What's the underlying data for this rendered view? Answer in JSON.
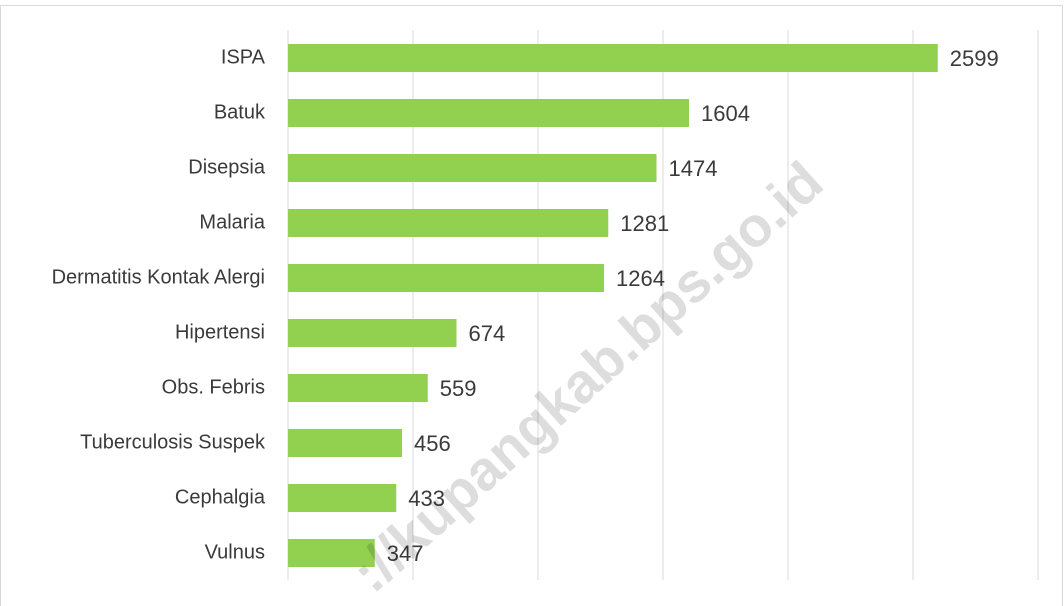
{
  "chart_data": {
    "type": "bar",
    "orientation": "horizontal",
    "categories": [
      "ISPA",
      "Batuk",
      "Disepsia",
      "Malaria",
      "Dermatitis Kontak Alergi",
      "Hipertensi",
      "Obs. Febris",
      "Tuberculosis Suspek",
      "Cephalgia",
      "Vulnus"
    ],
    "values": [
      2599,
      1604,
      1474,
      1281,
      1264,
      674,
      559,
      456,
      433,
      347
    ],
    "color": "#92d050",
    "xlim": [
      0,
      3000
    ],
    "xticks": [
      0,
      500,
      1000,
      1500,
      2000,
      2500,
      3000
    ],
    "grid": true,
    "watermark": "://kupangkab.bps.go.id"
  }
}
